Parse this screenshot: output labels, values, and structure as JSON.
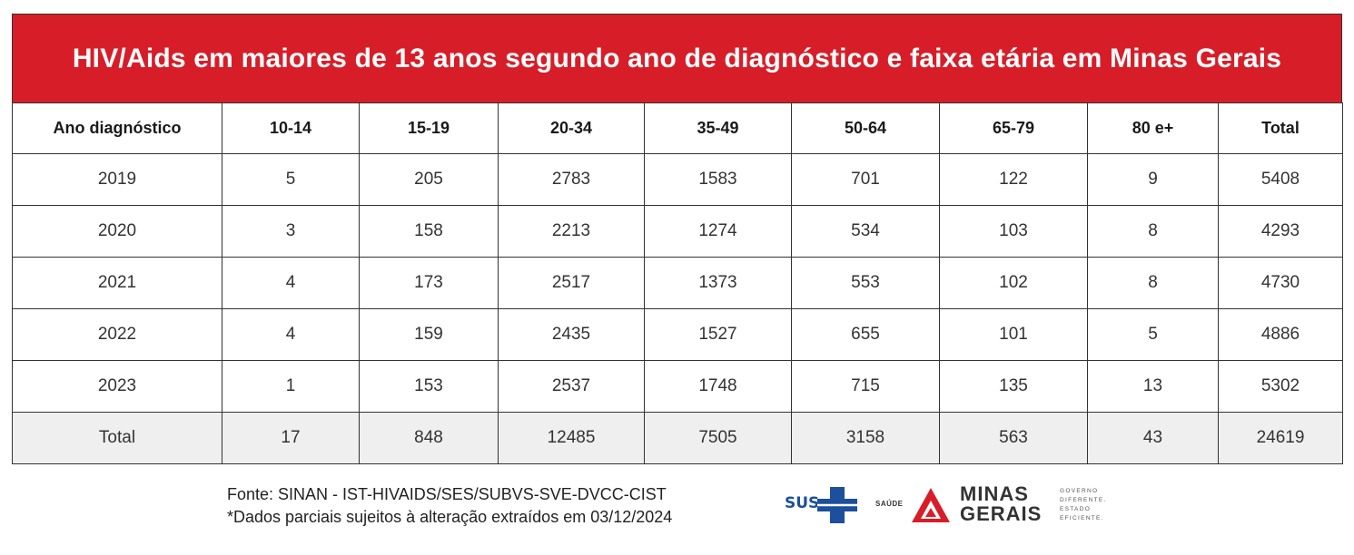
{
  "title": "HIV/Aids em maiores de 13 anos segundo ano de diagnóstico e faixa etária em Minas Gerais",
  "columns": [
    "Ano diagnóstico",
    "10-14",
    "15-19",
    "20-34",
    "35-49",
    "50-64",
    "65-79",
    "80 e+",
    "Total"
  ],
  "rows": [
    [
      "2019",
      "5",
      "205",
      "2783",
      "1583",
      "701",
      "122",
      "9",
      "5408"
    ],
    [
      "2020",
      "3",
      "158",
      "2213",
      "1274",
      "534",
      "103",
      "8",
      "4293"
    ],
    [
      "2021",
      "4",
      "173",
      "2517",
      "1373",
      "553",
      "102",
      "8",
      "4730"
    ],
    [
      "2022",
      "4",
      "159",
      "2435",
      "1527",
      "655",
      "101",
      "5",
      "4886"
    ],
    [
      "2023",
      "1",
      "153",
      "2537",
      "1748",
      "715",
      "135",
      "13",
      "5302"
    ],
    [
      "Total",
      "17",
      "848",
      "12485",
      "7505",
      "3158",
      "563",
      "43",
      "24619"
    ]
  ],
  "footer": {
    "source": "Fonte: SINAN - IST-HIVAIDS/SES/SUBVS-SVE-DVCC-CIST",
    "note": "*Dados parciais sujeitos à alteração extraídos em 03/12/2024"
  },
  "logos": {
    "sus": "SUS",
    "saude": "SAÚDE",
    "mg_line1": "MINAS",
    "mg_line2": "GERAIS",
    "slogan": [
      "GOVERNO",
      "DIFERENTE.",
      "ESTADO",
      "EFICIENTE."
    ]
  },
  "colors": {
    "header_red": "#d71e28",
    "sus_blue": "#1c4f9c",
    "total_row_bg": "#efefef"
  }
}
